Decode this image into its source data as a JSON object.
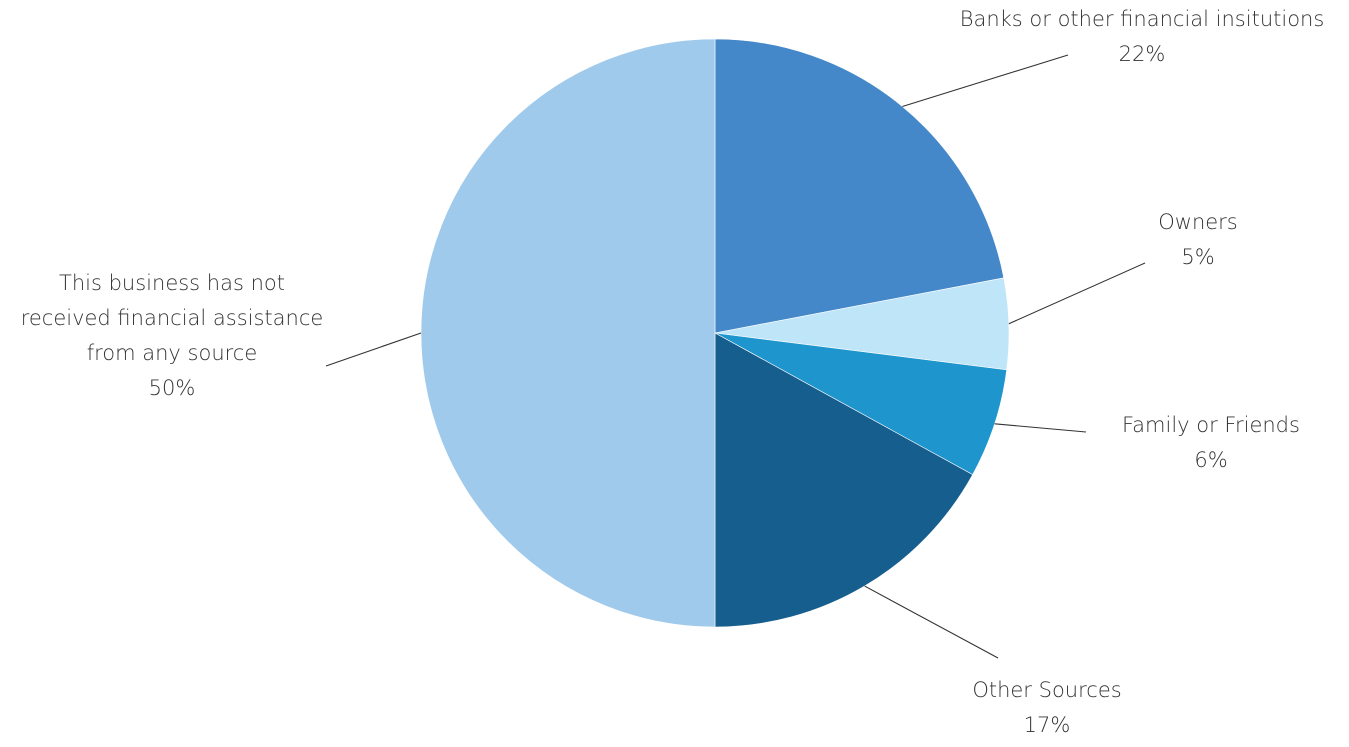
{
  "chart_data": {
    "type": "pie",
    "title": "",
    "start_angle_deg": 0,
    "direction": "clockwise",
    "slices": [
      {
        "name": "Banks or other financial insitutions",
        "label_lines": [
          "Banks or other financial insitutions"
        ],
        "value": 22,
        "value_label": "22%",
        "color": "#4488C9"
      },
      {
        "name": "Owners",
        "label_lines": [
          "Owners"
        ],
        "value": 5,
        "value_label": "5%",
        "color": "#BEE5F8"
      },
      {
        "name": "Family or Friends",
        "label_lines": [
          "Family or Friends"
        ],
        "value": 6,
        "value_label": "6%",
        "color": "#1E95CD"
      },
      {
        "name": "Other Sources",
        "label_lines": [
          "Other Sources"
        ],
        "value": 17,
        "value_label": "17%",
        "color": "#165E8D"
      },
      {
        "name": "This business has not received financial assistance from any source",
        "label_lines": [
          "This business has not",
          "received financial assistance",
          "from any source"
        ],
        "value": 50,
        "value_label": "50%",
        "color": "#9FCAEC"
      }
    ]
  }
}
